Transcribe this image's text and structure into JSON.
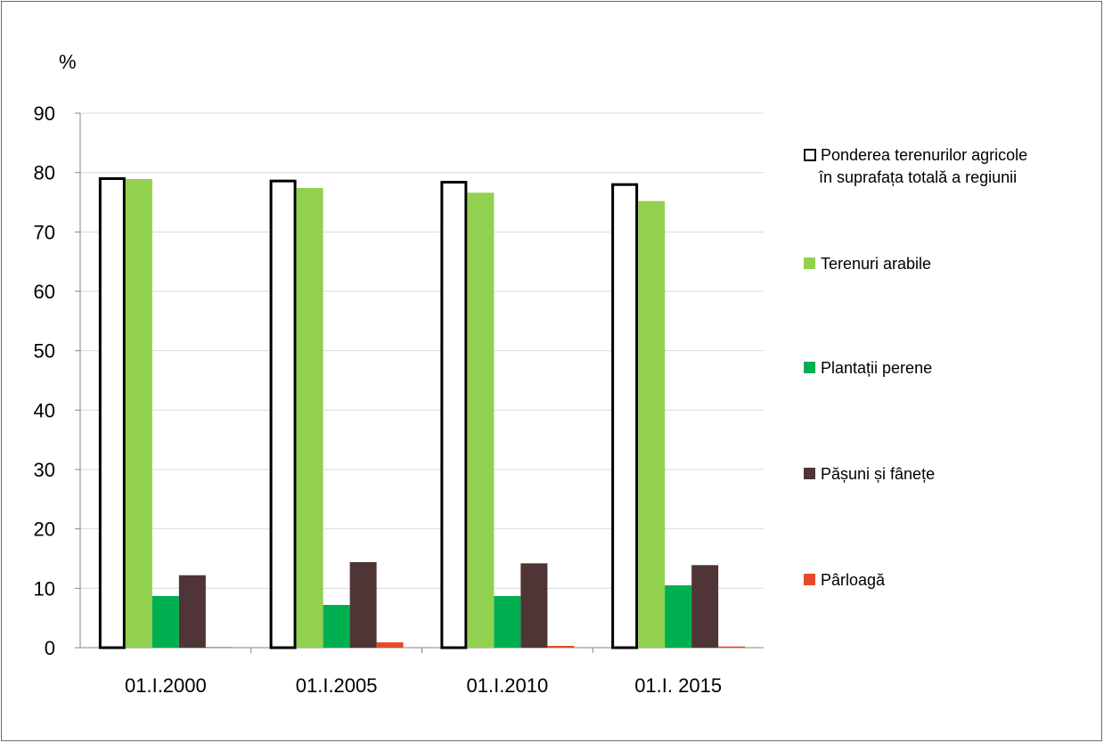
{
  "chart_data": {
    "type": "bar",
    "unit_label": "%",
    "categories": [
      "01.I.2000",
      "01.I.2005",
      "01.I.2010",
      "01.I. 2015"
    ],
    "series": [
      {
        "name": "Ponderea terenurilor agricole în suprafața totală a regiunii",
        "name_lines": [
          "Ponderea terenurilor agricole",
          "în suprafața totală a regiunii"
        ],
        "color": "#ffffff",
        "stroke": "#000000",
        "values": [
          79.2,
          78.8,
          78.6,
          78.2
        ]
      },
      {
        "name": "Terenuri arabile",
        "name_lines": [
          "Terenuri arabile"
        ],
        "color": "#92d050",
        "values": [
          78.9,
          77.4,
          76.6,
          75.2
        ]
      },
      {
        "name": "Plantații perene",
        "name_lines": [
          "Plantații perene"
        ],
        "color": "#00b050",
        "values": [
          8.7,
          7.2,
          8.7,
          10.5
        ]
      },
      {
        "name": "Pășuni și fânețe",
        "name_lines": [
          "Pășuni și fânețe"
        ],
        "color": "#4f3535",
        "values": [
          12.2,
          14.4,
          14.2,
          13.9
        ]
      },
      {
        "name": "Pârloagă",
        "name_lines": [
          "Pârloagă"
        ],
        "color": "#e8492a",
        "values": [
          0.1,
          0.9,
          0.3,
          0.2
        ]
      }
    ],
    "ylim": [
      0,
      90
    ],
    "yticks": [
      0,
      10,
      20,
      30,
      40,
      50,
      60,
      70,
      80,
      90
    ],
    "grid": true,
    "legend_position": "right"
  }
}
